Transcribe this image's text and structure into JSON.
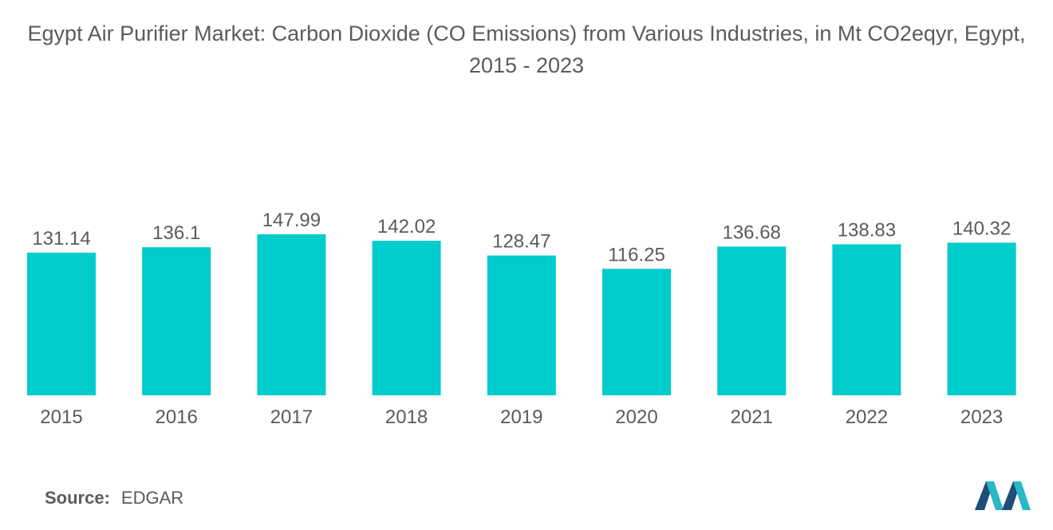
{
  "title": "Egypt Air Purifier Market: Carbon Dioxide (CO Emissions) from Various Industries, in Mt CO2eqyr, Egypt, 2015 - 2023",
  "source": {
    "label": "Source:",
    "value": "EDGAR"
  },
  "logo_icon": "mordor-intelligence-logo-icon",
  "colors": {
    "bar": "#00cccc",
    "text": "#5b5b5b",
    "logo_dark": "#1f4e79",
    "logo_light": "#2ab8c8"
  },
  "chart_data": {
    "type": "bar",
    "title": "Egypt Air Purifier Market: Carbon Dioxide (CO Emissions) from Various Industries, in Mt CO2eqyr, Egypt, 2015 - 2023",
    "xlabel": "",
    "ylabel": "",
    "categories": [
      "2015",
      "2016",
      "2017",
      "2018",
      "2019",
      "2020",
      "2021",
      "2022",
      "2023"
    ],
    "values": [
      131.14,
      136.1,
      147.99,
      142.02,
      128.47,
      116.25,
      136.68,
      138.83,
      140.32
    ],
    "labels": [
      "131.14",
      "136.1",
      "147.99",
      "142.02",
      "128.47",
      "116.25",
      "136.68",
      "138.83",
      "140.32"
    ],
    "ylim": [
      0,
      147.99
    ],
    "grid": false,
    "legend": "none"
  }
}
